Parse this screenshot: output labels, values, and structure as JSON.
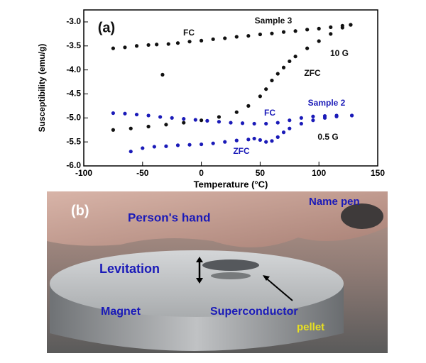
{
  "chart_data": {
    "type": "scatter",
    "x_label": "Temperature (°C)",
    "y_label": "Susceptibility (emu/g)",
    "xlim": [
      -100,
      150
    ],
    "xticks": [
      -100,
      -50,
      0,
      50,
      100,
      150
    ],
    "ylim": [
      -6.0,
      -2.75
    ],
    "yticks": [
      {
        "value": -3,
        "label": "-3.0"
      },
      {
        "value": -3.5,
        "label": "-3.5"
      },
      {
        "value": -4,
        "label": "-4.0"
      },
      {
        "value": -4.5,
        "label": "-4.5"
      },
      {
        "value": -5,
        "label": "-5.0"
      },
      {
        "value": -5.5,
        "label": "-5.5"
      },
      {
        "value": -6,
        "label": "-6.0"
      }
    ],
    "annotations": [
      "(a)",
      "FC",
      "Sample 3",
      "10 G",
      "ZFC",
      "Sample 2",
      "FC",
      "0.5 G",
      "ZFC"
    ],
    "series": [
      {
        "color": "#111111",
        "x": [
          -75,
          -65,
          -55,
          -45,
          -38,
          -33,
          -28,
          -20,
          -10,
          0,
          10,
          20,
          30,
          40,
          50,
          60,
          70,
          80,
          90,
          100,
          110,
          120,
          127
        ],
        "values": [
          -3.55,
          -3.53,
          -3.5,
          -3.48,
          -3.47,
          -4.1,
          -3.46,
          -3.44,
          -3.41,
          -3.39,
          -3.36,
          -3.34,
          -3.31,
          -3.29,
          -3.26,
          -3.24,
          -3.21,
          -3.19,
          -3.16,
          -3.14,
          -3.11,
          -3.08,
          -3.06
        ]
      },
      {
        "color": "#111111",
        "x": [
          -75,
          -60,
          -45,
          -30,
          -15,
          0,
          15,
          30,
          40,
          50,
          55,
          60,
          65,
          70,
          75,
          80,
          90,
          100,
          110,
          120,
          127
        ],
        "values": [
          -5.25,
          -5.22,
          -5.18,
          -5.14,
          -5.1,
          -5.05,
          -4.98,
          -4.88,
          -4.75,
          -4.55,
          -4.4,
          -4.22,
          -4.08,
          -3.95,
          -3.82,
          -3.72,
          -3.55,
          -3.4,
          -3.25,
          -3.12,
          -3.06
        ]
      },
      {
        "color": "#1a1ab8",
        "x": [
          -75,
          -65,
          -55,
          -45,
          -35,
          -25,
          -15,
          -5,
          5,
          15,
          25,
          35,
          45,
          55,
          65,
          75,
          85,
          95,
          105,
          115,
          128
        ],
        "values": [
          -4.9,
          -4.91,
          -4.93,
          -4.95,
          -4.98,
          -5.0,
          -5.02,
          -5.04,
          -5.06,
          -5.08,
          -5.1,
          -5.11,
          -5.12,
          -5.12,
          -5.1,
          -5.05,
          -5.0,
          -4.97,
          -4.96,
          -4.95,
          -4.95
        ]
      },
      {
        "color": "#1a1ab8",
        "x": [
          -60,
          -50,
          -40,
          -30,
          -20,
          -10,
          0,
          10,
          20,
          30,
          40,
          45,
          50,
          55,
          60,
          65,
          70,
          75,
          85,
          95,
          105,
          115,
          128
        ],
        "values": [
          -5.7,
          -5.63,
          -5.6,
          -5.59,
          -5.57,
          -5.56,
          -5.55,
          -5.53,
          -5.5,
          -5.47,
          -5.45,
          -5.43,
          -5.46,
          -5.5,
          -5.48,
          -5.4,
          -5.3,
          -5.22,
          -5.12,
          -5.05,
          -5.0,
          -4.97,
          -4.95
        ]
      }
    ]
  },
  "photo": {
    "labels": [
      "(b)",
      "Person's hand",
      "Name pen",
      "Levitation",
      "Magnet",
      "Superconductor",
      "pellet"
    ]
  }
}
